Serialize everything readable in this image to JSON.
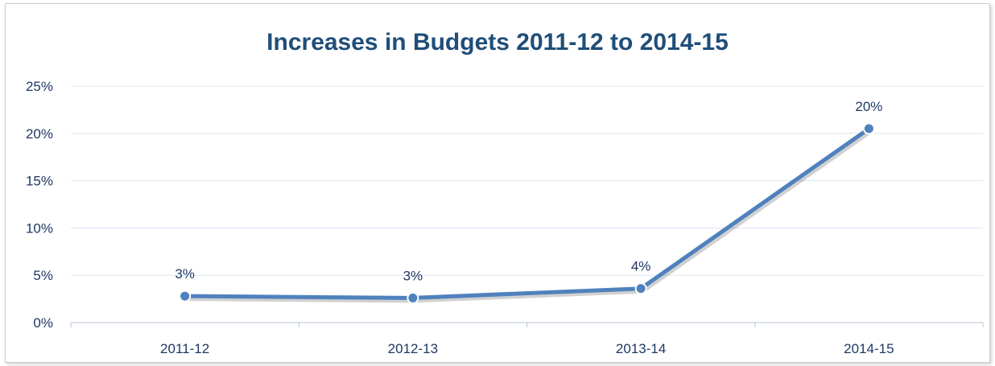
{
  "chart_data": {
    "type": "line",
    "title": "Increases in Budgets 2011-12 to 2014-15",
    "categories": [
      "2011-12",
      "2012-13",
      "2013-14",
      "2014-15"
    ],
    "series": [
      {
        "values": [
          2.8,
          2.6,
          3.6,
          20.5
        ],
        "labels": [
          "3%",
          "3%",
          "4%",
          "20%"
        ]
      }
    ],
    "ylim": [
      0,
      25
    ],
    "yticks": [
      "0%",
      "5%",
      "10%",
      "15%",
      "20%",
      "25%"
    ],
    "ytick_values": [
      0,
      5,
      10,
      15,
      20,
      25
    ],
    "grid": true,
    "legend": "none",
    "colors": {
      "line": "#4f81bd",
      "marker_fill": "#4f81bd",
      "marker_edge": "#ffffff",
      "grid": "#dce6f2",
      "text": "#1f3864",
      "title": "#1f4e79"
    }
  }
}
